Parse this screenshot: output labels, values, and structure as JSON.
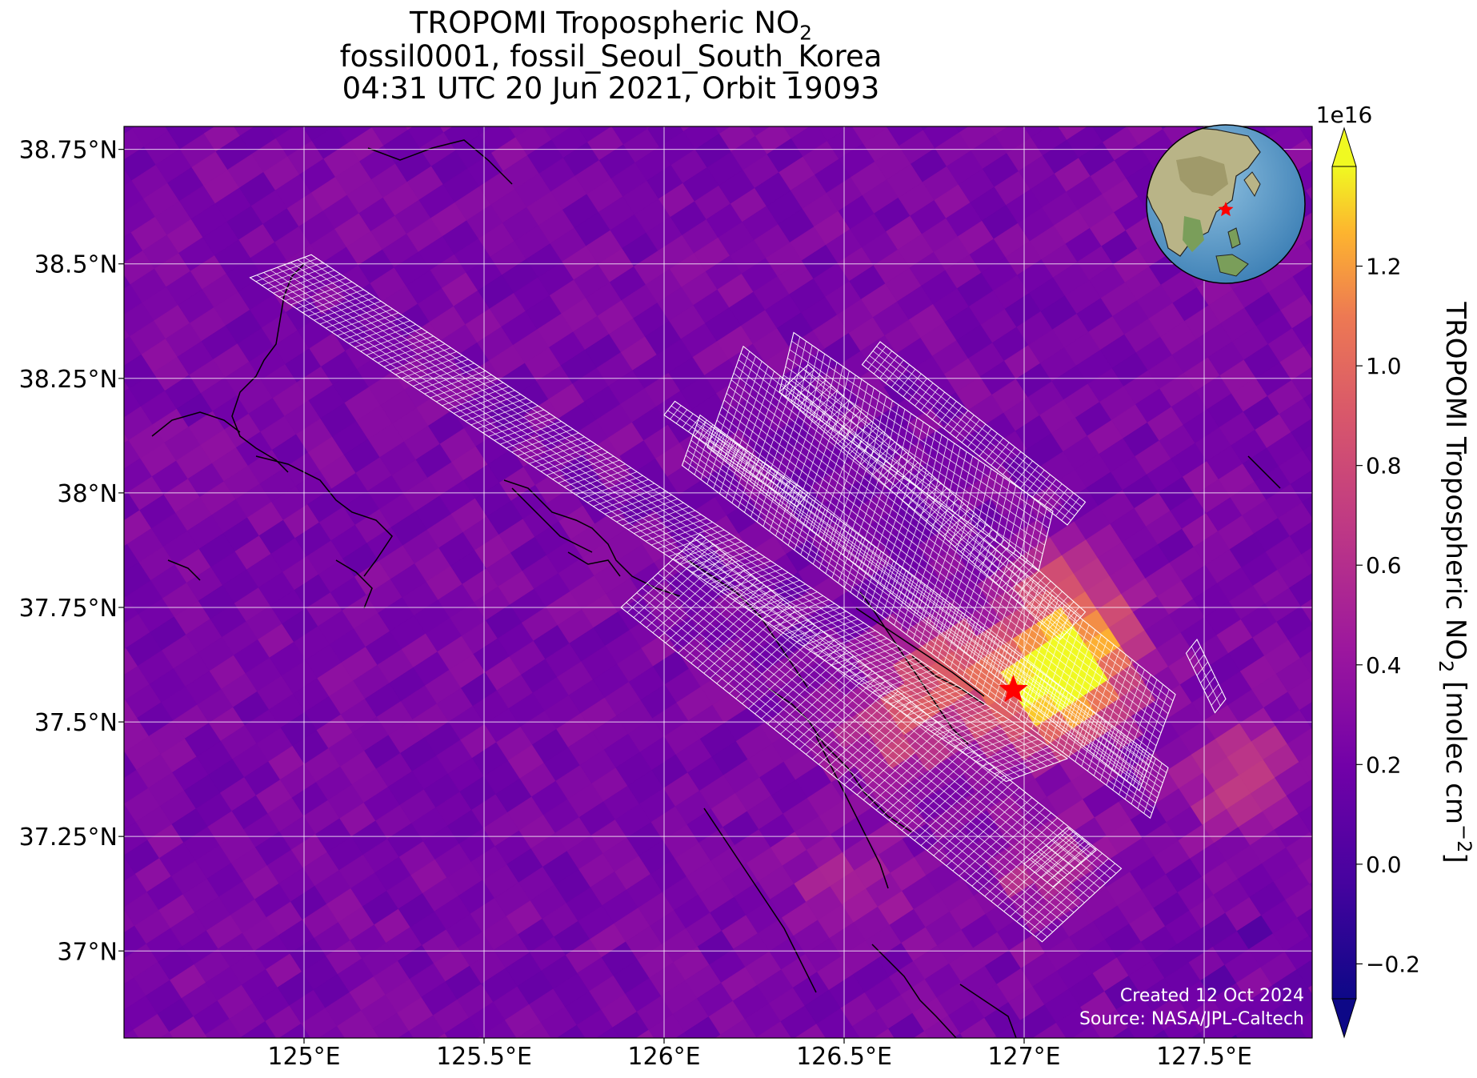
{
  "title": {
    "line1_main": "TROPOMI Tropospheric NO",
    "line1_sub": "2",
    "line2": "fossil0001, fossil_Seoul_South_Korea",
    "line3": "04:31 UTC 20 Jun 2021, Orbit 19093"
  },
  "annotations": {
    "created": "Created 12 Oct 2024",
    "source": "Source: NASA/JPL-Caltech"
  },
  "chart_data": {
    "type": "heatmap",
    "projection": "lat-lon map",
    "xlim": [
      124.5,
      127.8
    ],
    "ylim": [
      36.81,
      38.8
    ],
    "x_ticks": [
      125.0,
      125.5,
      126.0,
      126.5,
      127.0,
      127.5
    ],
    "x_tick_labels": [
      "125°E",
      "125.5°E",
      "126°E",
      "126.5°E",
      "127°E",
      "127.5°E"
    ],
    "y_ticks": [
      37.0,
      37.25,
      37.5,
      37.75,
      38.0,
      38.25,
      38.5,
      38.75
    ],
    "y_tick_labels": [
      "37°N",
      "37.25°N",
      "37.5°N",
      "37.75°N",
      "38°N",
      "38.25°N",
      "38.5°N",
      "38.75°N"
    ],
    "grid": true,
    "target_marker": {
      "lon": 126.97,
      "lat": 37.57,
      "symbol": "star",
      "color": "#ff0000"
    },
    "background_level": 0.25,
    "no2_hotspots": [
      {
        "lon": 127.15,
        "lat": 37.62,
        "peak": 1.3
      },
      {
        "lon": 127.02,
        "lat": 37.55,
        "peak": 0.95
      },
      {
        "lon": 126.78,
        "lat": 37.62,
        "peak": 0.75
      },
      {
        "lon": 126.65,
        "lat": 37.48,
        "peak": 0.7
      },
      {
        "lon": 127.12,
        "lat": 37.78,
        "peak": 0.8
      },
      {
        "lon": 127.05,
        "lat": 37.18,
        "peak": 0.6
      },
      {
        "lon": 126.5,
        "lat": 37.12,
        "peak": 0.5
      },
      {
        "lon": 127.6,
        "lat": 37.38,
        "peak": 0.7
      }
    ],
    "sounding_swaths": [
      {
        "corners": [
          [
            124.85,
            38.47
          ],
          [
            125.02,
            38.52
          ],
          [
            127.12,
            37.42
          ],
          [
            126.95,
            37.37
          ]
        ],
        "rows": 130,
        "cols": 9
      },
      {
        "corners": [
          [
            126.0,
            38.17
          ],
          [
            126.03,
            38.2
          ],
          [
            126.4,
            38.0
          ],
          [
            126.37,
            37.97
          ]
        ],
        "rows": 22,
        "cols": 3
      },
      {
        "corners": [
          [
            126.05,
            38.06
          ],
          [
            126.1,
            38.17
          ],
          [
            127.4,
            37.4
          ],
          [
            127.35,
            37.29
          ]
        ],
        "rows": 75,
        "cols": 10
      },
      {
        "corners": [
          [
            126.12,
            38.1
          ],
          [
            126.22,
            38.32
          ],
          [
            127.42,
            37.56
          ],
          [
            127.32,
            37.35
          ]
        ],
        "rows": 70,
        "cols": 15
      },
      {
        "corners": [
          [
            126.32,
            38.22
          ],
          [
            126.36,
            38.35
          ],
          [
            127.08,
            37.96
          ],
          [
            127.04,
            37.83
          ]
        ],
        "rows": 42,
        "cols": 7
      },
      {
        "corners": [
          [
            126.32,
            38.22
          ],
          [
            126.4,
            38.28
          ],
          [
            127.17,
            37.74
          ],
          [
            127.1,
            37.68
          ]
        ],
        "rows": 48,
        "cols": 6
      },
      {
        "corners": [
          [
            126.55,
            38.28
          ],
          [
            126.6,
            38.33
          ],
          [
            127.17,
            37.98
          ],
          [
            127.12,
            37.93
          ]
        ],
        "rows": 35,
        "cols": 5
      },
      {
        "corners": [
          [
            125.88,
            37.75
          ],
          [
            126.1,
            37.91
          ],
          [
            127.27,
            37.18
          ],
          [
            127.05,
            37.02
          ]
        ],
        "rows": 66,
        "cols": 15
      },
      {
        "corners": [
          [
            127.0,
            37.19
          ],
          [
            127.12,
            37.27
          ],
          [
            127.2,
            37.22
          ],
          [
            127.08,
            37.14
          ]
        ],
        "rows": 5,
        "cols": 6
      },
      {
        "corners": [
          [
            127.45,
            37.65
          ],
          [
            127.48,
            37.68
          ],
          [
            127.56,
            37.55
          ],
          [
            127.53,
            37.52
          ]
        ],
        "rows": 8,
        "cols": 2
      }
    ],
    "inset_globe": {
      "center_lon": 127.0,
      "center_lat": 37.5,
      "marker": "red star"
    },
    "colorbar": {
      "label_main": "TROPOMI Tropospheric NO",
      "label_sub": "2",
      "label_units": " [molec cm",
      "label_exp": "−2",
      "label_close": "]",
      "multiplier": "1e16",
      "range": [
        -0.27,
        1.4
      ],
      "ticks": [
        -0.2,
        0.0,
        0.2,
        0.4,
        0.6,
        0.8,
        1.0,
        1.2
      ],
      "tick_labels": [
        "−0.2",
        "0.0",
        "0.2",
        "0.4",
        "0.6",
        "0.8",
        "1.0",
        "1.2"
      ],
      "extend": "both",
      "colormap": "plasma"
    }
  }
}
